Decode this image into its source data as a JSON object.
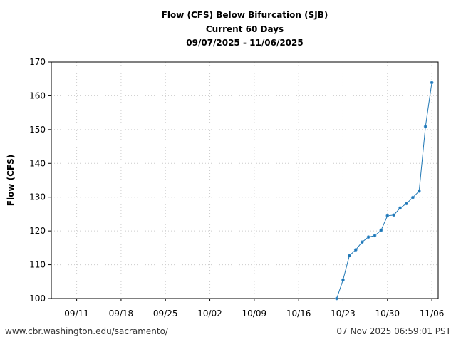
{
  "chart_data": {
    "type": "line",
    "title": "Flow (CFS) Below Bifurcation (SJB)",
    "subtitle": "Current 60 Days",
    "date_range": "09/07/2025 - 11/06/2025",
    "ylabel": "Flow (CFS)",
    "xlabel": "",
    "xlim": [
      "09/07/2025",
      "11/07/2025"
    ],
    "ylim": [
      100,
      170
    ],
    "x_ticks": [
      "09/11",
      "09/18",
      "09/25",
      "10/02",
      "10/09",
      "10/16",
      "10/23",
      "10/30",
      "11/06"
    ],
    "y_ticks": [
      100,
      110,
      120,
      130,
      140,
      150,
      160,
      170
    ],
    "grid": true,
    "color": "#1f77b4",
    "x": [
      "10/22",
      "10/23",
      "10/24",
      "10/25",
      "10/26",
      "10/27",
      "10/28",
      "10/29",
      "10/30",
      "10/31",
      "11/01",
      "11/02",
      "11/03",
      "11/04",
      "11/05",
      "11/06"
    ],
    "values": [
      100.0,
      105.5,
      112.7,
      114.4,
      116.7,
      118.2,
      118.6,
      120.2,
      124.5,
      124.7,
      126.8,
      128.1,
      129.9,
      131.8,
      150.9,
      163.9
    ]
  },
  "footer": {
    "source": "www.cbr.washington.edu/sacramento/",
    "timestamp": "07 Nov 2025 06:59:01 PST"
  }
}
